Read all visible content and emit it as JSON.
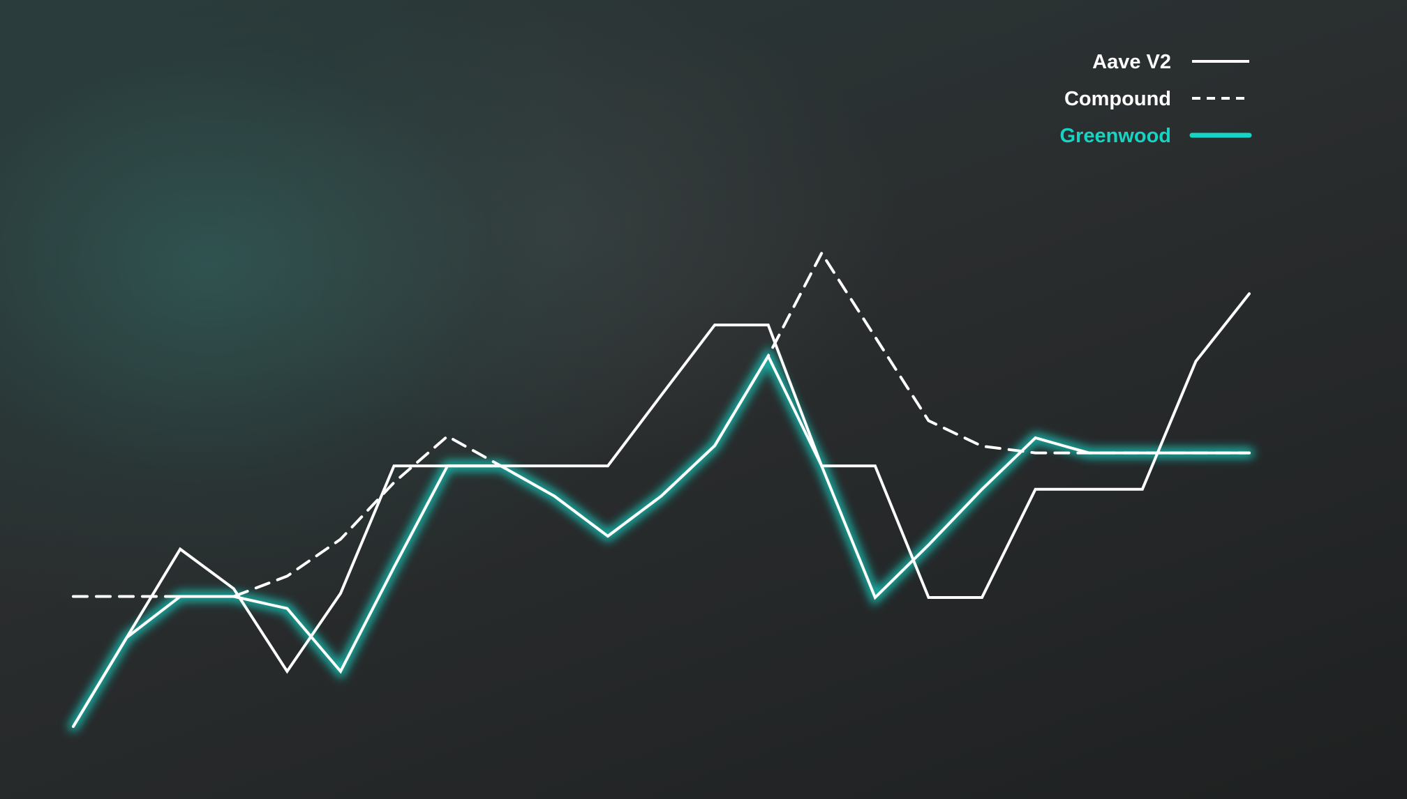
{
  "chart_data": {
    "type": "line",
    "title": "",
    "xlabel": "",
    "ylabel": "",
    "x": [
      0,
      1,
      2,
      3,
      4,
      5,
      6,
      7,
      8,
      9,
      10,
      11,
      12,
      13,
      14,
      15,
      16,
      17,
      18,
      19,
      20,
      21,
      22
    ],
    "ylim": [
      0,
      100
    ],
    "grid": false,
    "legend_position": "top-right",
    "series": [
      {
        "name": "Aave V2",
        "style": "solid",
        "color": "#ffffff",
        "glow": false,
        "values": [
          0,
          17.1,
          34.1,
          26.5,
          10.6,
          25.6,
          50.1,
          50.1,
          50.1,
          50.1,
          50.1,
          63.7,
          77.2,
          77.2,
          50.1,
          50.1,
          24.8,
          24.8,
          45.6,
          45.6,
          45.6,
          70.2,
          83.2
        ]
      },
      {
        "name": "Compound",
        "style": "dashed",
        "color": "#ffffff",
        "glow": false,
        "values": [
          25.0,
          25.0,
          25.0,
          25.0,
          28.9,
          36.0,
          46.9,
          55.8,
          50.1,
          44.3,
          36.6,
          44.3,
          54.0,
          71.2,
          91.0,
          74.9,
          58.8,
          53.9,
          52.6,
          52.6,
          52.6,
          52.6,
          52.6
        ]
      },
      {
        "name": "Greenwood",
        "style": "solid",
        "color": "#17d3c4",
        "glow": true,
        "values": [
          0,
          17.1,
          25.0,
          25.0,
          22.7,
          10.6,
          30.6,
          50.1,
          50.1,
          44.3,
          36.6,
          44.3,
          54.0,
          71.2,
          50.1,
          24.8,
          34.9,
          45.6,
          55.5,
          52.6,
          52.6,
          52.6,
          52.6
        ]
      }
    ]
  }
}
